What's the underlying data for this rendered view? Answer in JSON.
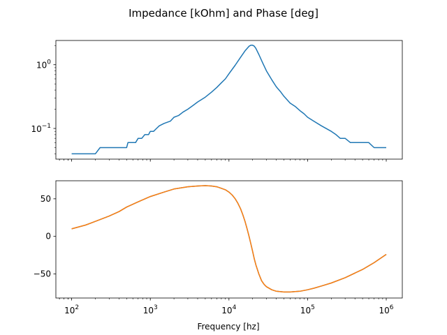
{
  "chart_data": [
    {
      "type": "line",
      "title": "Impedance [kOhm] and Phase [deg]",
      "xscale": "log",
      "yscale": "log",
      "xlim": [
        63,
        1600000
      ],
      "ylim": [
        0.033,
        2.4
      ],
      "grid": false,
      "y_ticks": [
        {
          "value": 1,
          "base": "10",
          "exp": "0"
        },
        {
          "value": 0.1,
          "base": "10",
          "exp": "−1"
        }
      ],
      "series": [
        {
          "color": "#1f77b4",
          "x": [
            100,
            130,
            160,
            200,
            230,
            260,
            300,
            350,
            400,
            450,
            500,
            520,
            600,
            650,
            700,
            780,
            850,
            950,
            1000,
            1100,
            1200,
            1300,
            1500,
            1800,
            2000,
            2300,
            2600,
            3000,
            3500,
            4000,
            5000,
            6000,
            7000,
            8000,
            9000,
            10000,
            12000,
            14000,
            16000,
            18000,
            19000,
            20000,
            21000,
            22000,
            24000,
            27000,
            30000,
            35000,
            40000,
            45000,
            50000,
            60000,
            70000,
            80000,
            90000,
            100000,
            120000,
            150000,
            200000,
            230000,
            260000,
            300000,
            350000,
            400000,
            450000,
            500000,
            600000,
            700000,
            800000,
            1000000
          ],
          "y": [
            0.04,
            0.04,
            0.04,
            0.04,
            0.05,
            0.05,
            0.05,
            0.05,
            0.05,
            0.05,
            0.05,
            0.06,
            0.06,
            0.06,
            0.07,
            0.07,
            0.08,
            0.08,
            0.09,
            0.09,
            0.1,
            0.11,
            0.12,
            0.13,
            0.15,
            0.16,
            0.18,
            0.2,
            0.23,
            0.26,
            0.31,
            0.37,
            0.44,
            0.52,
            0.6,
            0.72,
            0.98,
            1.3,
            1.65,
            1.95,
            2.02,
            2.02,
            1.95,
            1.8,
            1.45,
            1.05,
            0.8,
            0.58,
            0.45,
            0.38,
            0.32,
            0.25,
            0.22,
            0.19,
            0.17,
            0.15,
            0.13,
            0.11,
            0.09,
            0.08,
            0.07,
            0.07,
            0.06,
            0.06,
            0.06,
            0.06,
            0.06,
            0.05,
            0.05,
            0.05
          ]
        }
      ]
    },
    {
      "type": "line",
      "xlabel": "Frequency [hz]",
      "xscale": "log",
      "xlim": [
        63,
        1600000
      ],
      "ylim": [
        -82,
        74
      ],
      "grid": false,
      "y_ticks": [
        {
          "value": 50,
          "text": "50"
        },
        {
          "value": 0,
          "text": "0"
        },
        {
          "value": -50,
          "text": "−50"
        }
      ],
      "x_ticks": [
        {
          "value": 100,
          "base": "10",
          "exp": "2"
        },
        {
          "value": 1000,
          "base": "10",
          "exp": "3"
        },
        {
          "value": 10000,
          "base": "10",
          "exp": "4"
        },
        {
          "value": 100000,
          "base": "10",
          "exp": "5"
        },
        {
          "value": 1000000,
          "base": "10",
          "exp": "6"
        }
      ],
      "series": [
        {
          "color": "#1f77b4",
          "x": [
            100,
            150,
            200,
            300,
            400,
            500,
            700,
            1000,
            1500,
            2000,
            3000,
            4000,
            5000,
            6000,
            7000,
            8000,
            9000,
            10000,
            11000,
            12000,
            13000,
            14000,
            15000,
            16000,
            17000,
            18000,
            19000,
            20000,
            21000,
            22000,
            24000,
            26000,
            28000,
            30000,
            35000,
            40000,
            50000,
            60000,
            70000,
            80000,
            100000,
            120000,
            150000,
            200000,
            300000,
            500000,
            700000,
            1000000
          ],
          "y": [
            10,
            15,
            20,
            27,
            33,
            39,
            46,
            53,
            59,
            63,
            66,
            67,
            67.5,
            67,
            66,
            64,
            62,
            59,
            55,
            50,
            44,
            37,
            29,
            20,
            10,
            0,
            -10,
            -20,
            -30,
            -38,
            -50,
            -59,
            -64,
            -67,
            -71,
            -73,
            -74,
            -74,
            -73.5,
            -73,
            -71,
            -69,
            -66,
            -62,
            -55,
            -44,
            -35,
            -24
          ]
        },
        {
          "color": "#ff7f0e",
          "x": [
            100,
            150,
            200,
            300,
            400,
            500,
            700,
            1000,
            1500,
            2000,
            3000,
            4000,
            5000,
            6000,
            7000,
            8000,
            9000,
            10000,
            11000,
            12000,
            13000,
            14000,
            15000,
            16000,
            17000,
            18000,
            19000,
            20000,
            21000,
            22000,
            24000,
            26000,
            28000,
            30000,
            35000,
            40000,
            50000,
            60000,
            70000,
            80000,
            100000,
            120000,
            150000,
            200000,
            300000,
            500000,
            700000,
            1000000
          ],
          "y": [
            10,
            15,
            20,
            27,
            33,
            39,
            46,
            53,
            59,
            63,
            66,
            67,
            67.5,
            67,
            66,
            64,
            62,
            59,
            55,
            50,
            44,
            37,
            29,
            20,
            10,
            0,
            -10,
            -20,
            -30,
            -38,
            -50,
            -59,
            -64,
            -67,
            -71,
            -73,
            -74,
            -74,
            -73.5,
            -73,
            -71,
            -69,
            -66,
            -62,
            -55,
            -44,
            -35,
            -24
          ]
        }
      ]
    }
  ]
}
